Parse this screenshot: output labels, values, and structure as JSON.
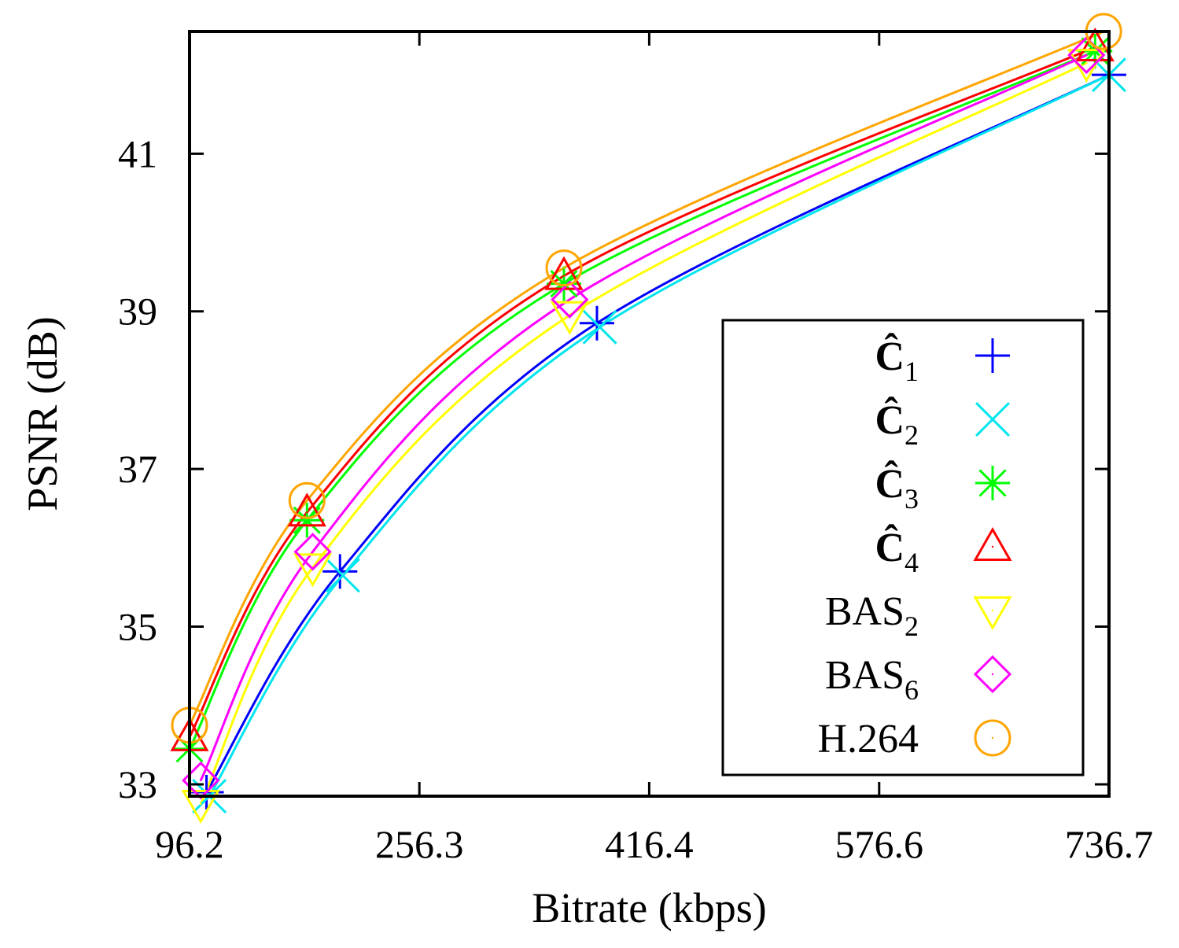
{
  "chart_data": {
    "type": "line",
    "title": "",
    "xlabel": "Bitrate (kbps)",
    "ylabel": "PSNR (dB)",
    "xlim": [
      96.2,
      736.7
    ],
    "ylim": [
      32.85,
      42.55
    ],
    "xticks": [
      96.2,
      256.3,
      416.4,
      576.6,
      736.7
    ],
    "xtick_labels": [
      "96.2",
      "256.3",
      "416.4",
      "576.6",
      "736.7"
    ],
    "yticks": [
      33,
      35,
      37,
      39,
      41
    ],
    "ytick_labels": [
      "33",
      "35",
      "37",
      "39",
      "41"
    ],
    "grid": false,
    "legend_position": "bottom-right",
    "series": [
      {
        "name": "Ĉ",
        "subscript": "1",
        "color": "#0000ff",
        "marker": "plus",
        "x": [
          108,
          201,
          380,
          736.7
        ],
        "y": [
          32.9,
          35.7,
          38.85,
          42.0
        ]
      },
      {
        "name": "Ĉ",
        "subscript": "2",
        "color": "#00e5ee",
        "marker": "cross",
        "x": [
          110,
          203,
          382,
          736.7
        ],
        "y": [
          32.85,
          35.65,
          38.8,
          42.0
        ]
      },
      {
        "name": "Ĉ",
        "subscript": "3",
        "color": "#00ff00",
        "marker": "star",
        "x": [
          96.2,
          178,
          357,
          727
        ],
        "y": [
          33.45,
          36.35,
          39.35,
          42.3
        ]
      },
      {
        "name": "Ĉ",
        "subscript": "4",
        "color": "#ff0000",
        "marker": "triangle-up",
        "x": [
          96.2,
          178,
          357,
          727
        ],
        "y": [
          33.6,
          36.45,
          39.45,
          42.35
        ]
      },
      {
        "name": "BAS",
        "subscript": "2",
        "color": "#ffff00",
        "marker": "triangle-down",
        "x": [
          104,
          182,
          361,
          721
        ],
        "y": [
          32.75,
          35.75,
          38.95,
          42.15
        ]
      },
      {
        "name": "BAS",
        "subscript": "6",
        "color": "#ff00ff",
        "marker": "diamond",
        "x": [
          104,
          182,
          361,
          721
        ],
        "y": [
          33.05,
          35.95,
          39.15,
          42.25
        ]
      },
      {
        "name": "H.264",
        "subscript": "",
        "color": "#ffa500",
        "marker": "circle",
        "x": [
          96.2,
          178,
          357,
          733
        ],
        "y": [
          33.75,
          36.6,
          39.55,
          42.55
        ]
      }
    ]
  }
}
